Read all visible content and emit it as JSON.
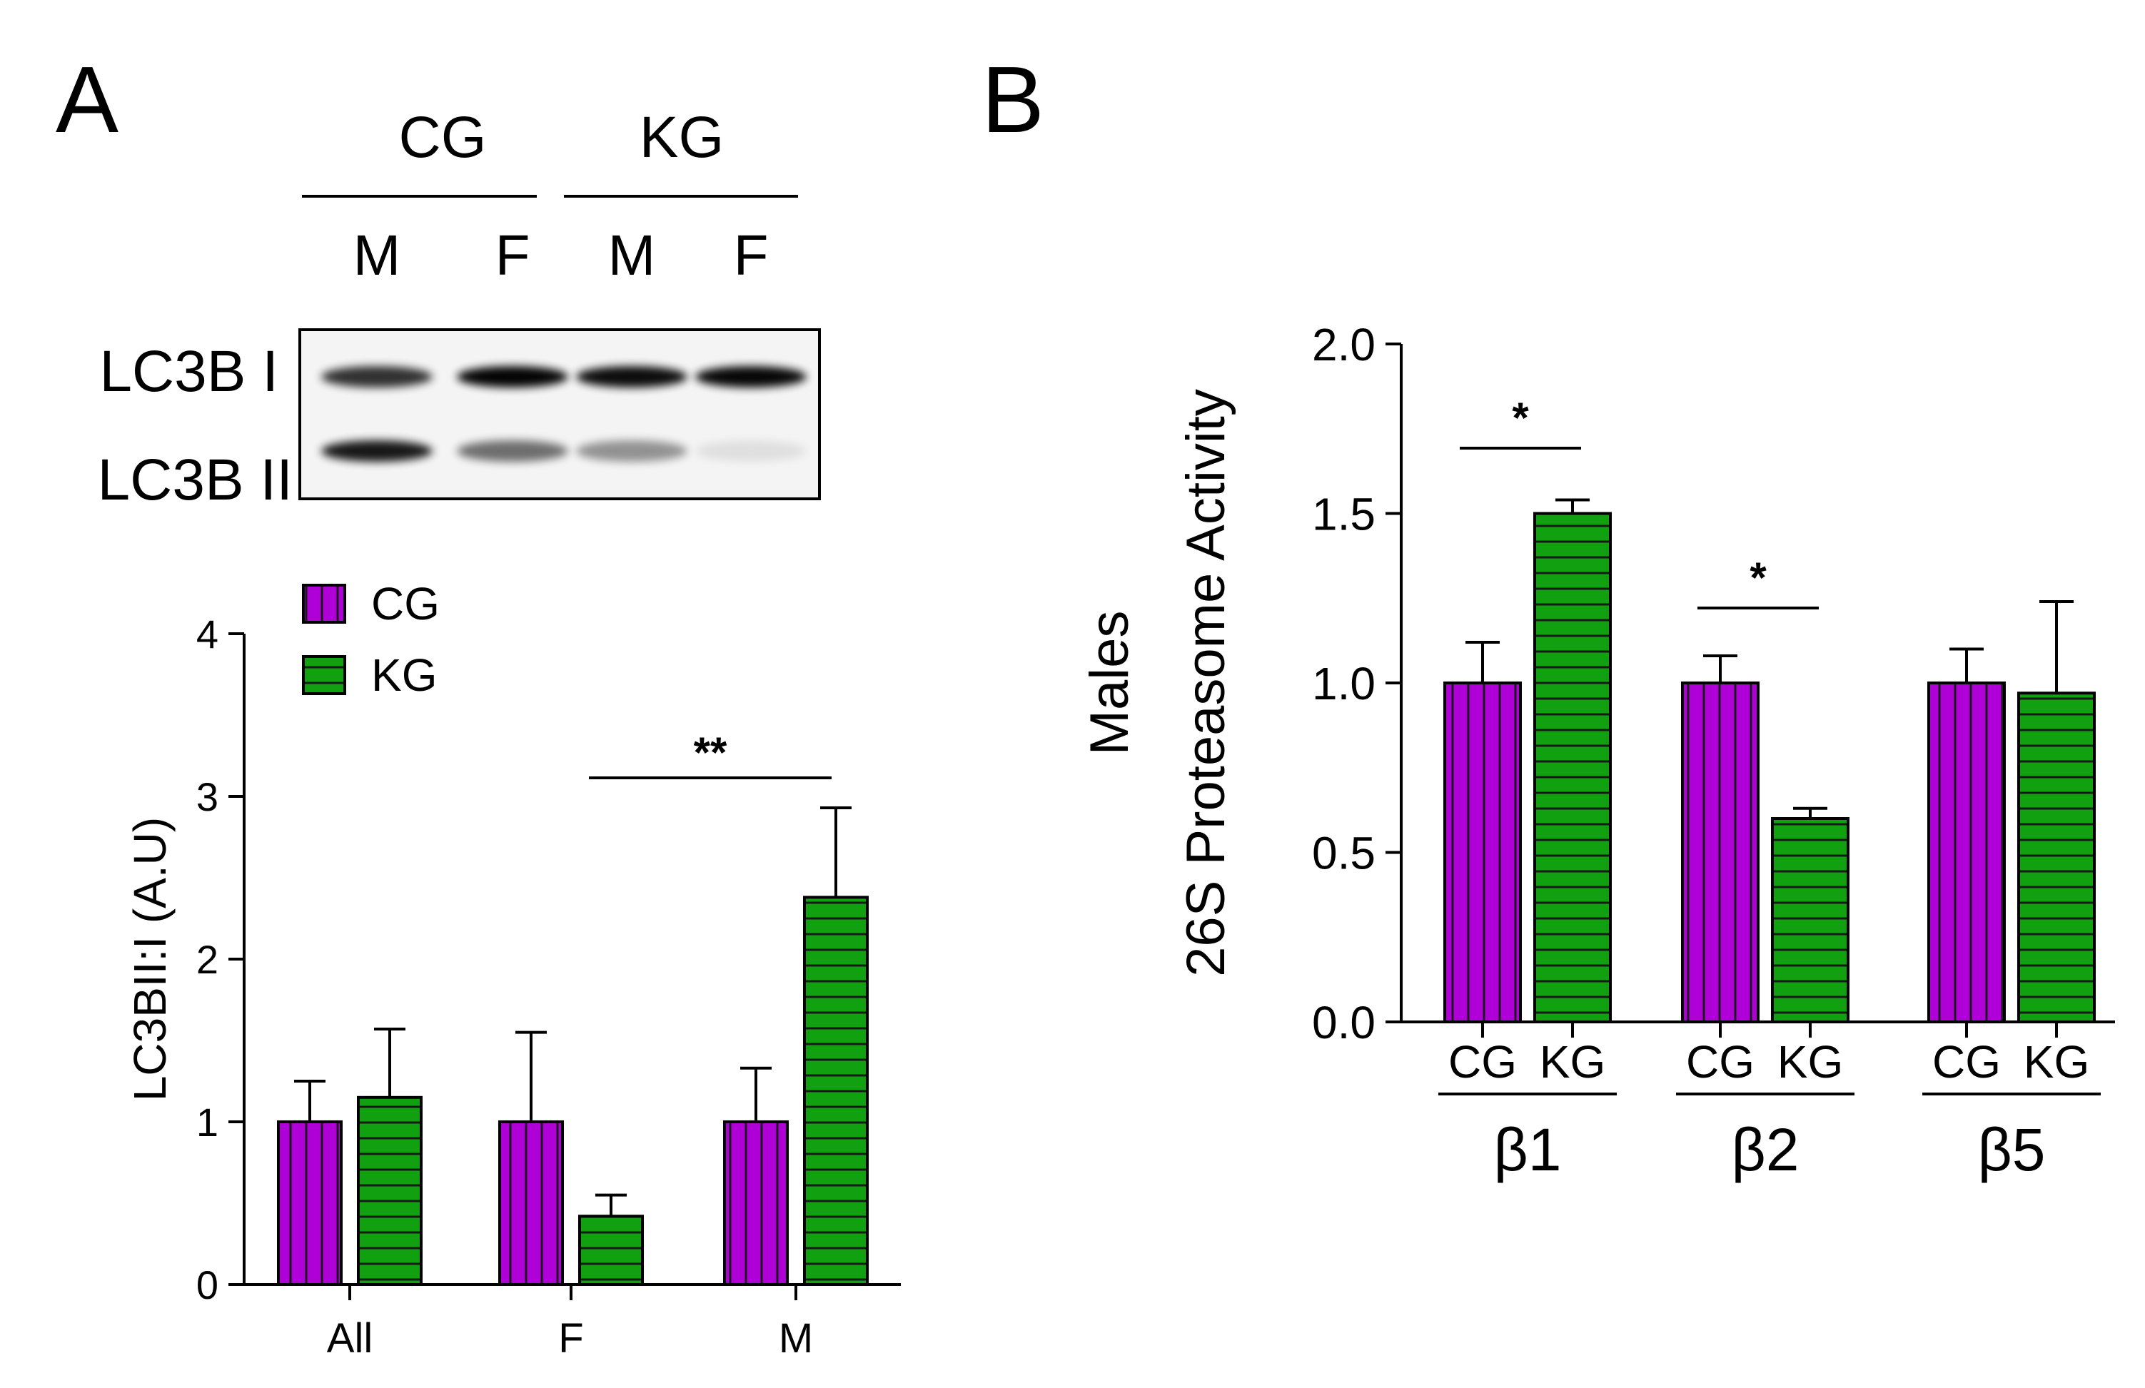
{
  "panels": {
    "a": {
      "letter": "A"
    },
    "b": {
      "letter": "B"
    }
  },
  "colors": {
    "cg": "#b000d8",
    "kg": "#10a010",
    "pattern_line": "#1a1a1a"
  },
  "blot": {
    "groups": [
      "CG",
      "KG"
    ],
    "lanes": [
      "M",
      "F",
      "M",
      "F"
    ],
    "bands": [
      "LC3B I",
      "LC3B II"
    ],
    "band_intensity": {
      "lc3b_i": [
        0.8,
        0.98,
        0.95,
        0.97
      ],
      "lc3b_ii": [
        0.9,
        0.55,
        0.4,
        0.08
      ]
    }
  },
  "chart_data": [
    {
      "type": "bar",
      "panel": "A",
      "categories": [
        "All",
        "F",
        "M"
      ],
      "series": [
        {
          "name": "CG",
          "values": [
            1.0,
            1.0,
            1.0
          ],
          "errors": [
            0.25,
            0.55,
            0.33
          ]
        },
        {
          "name": "KG",
          "values": [
            1.15,
            0.42,
            2.38
          ],
          "errors": [
            0.42,
            0.13,
            0.55
          ]
        }
      ],
      "ylabel": "LC3BII:I (A.U)",
      "ylim": [
        0,
        4
      ],
      "yticks": [
        "0",
        "1",
        "2",
        "3",
        "4"
      ],
      "legend": [
        "CG",
        "KG"
      ],
      "legend_position": "top-left",
      "significance": [
        {
          "category": "M",
          "label": "**"
        }
      ]
    },
    {
      "type": "bar",
      "panel": "B",
      "categories": [
        "β1",
        "β2",
        "β5"
      ],
      "series": [
        {
          "name": "CG",
          "values": [
            1.0,
            1.0,
            1.0
          ],
          "errors": [
            0.12,
            0.08,
            0.1
          ]
        },
        {
          "name": "KG",
          "values": [
            1.5,
            0.6,
            0.97
          ],
          "errors": [
            0.04,
            0.03,
            0.27
          ]
        }
      ],
      "sublabels": [
        "CG",
        "KG"
      ],
      "ylabel_line1": "Males",
      "ylabel_line2": "26S Proteasome Activity",
      "ylim": [
        0,
        2.0
      ],
      "yticks": [
        "0.0",
        "0.5",
        "1.0",
        "1.5",
        "2.0"
      ],
      "significance": [
        {
          "category": "β1",
          "label": "*"
        },
        {
          "category": "β2",
          "label": "*"
        }
      ]
    }
  ]
}
